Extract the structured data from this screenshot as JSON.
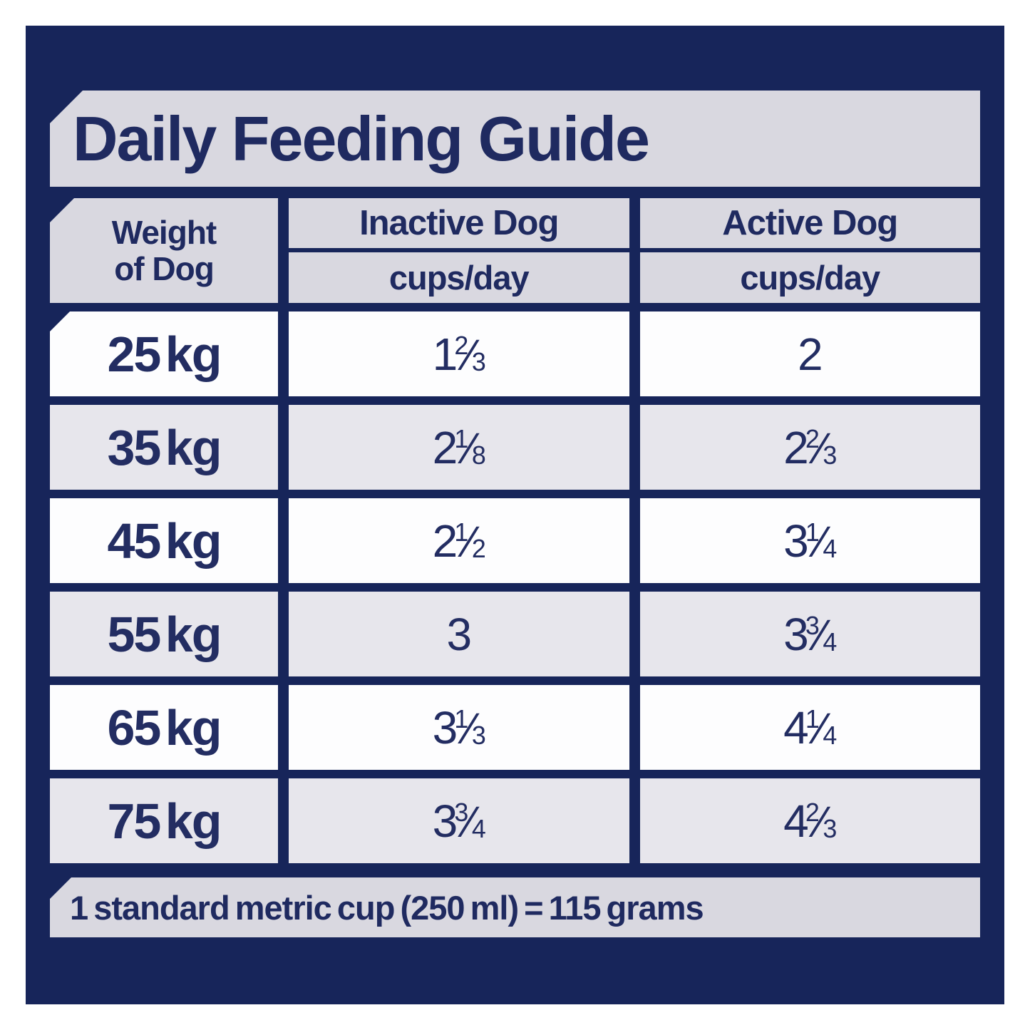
{
  "title": "Daily Feeding Guide",
  "colors": {
    "panel_navy": "#17255a",
    "text_navy": "#232d62",
    "band_gray": "#d9d8e0",
    "row_gray": "#e7e6ec",
    "row_white": "#fdfdfe"
  },
  "header": {
    "col1_line1": "Weight",
    "col1_line2": "of Dog",
    "col2_label": "Inactive Dog",
    "col2_unit": "cups/day",
    "col3_label": "Active Dog",
    "col3_unit": "cups/day"
  },
  "table": {
    "rows": [
      {
        "weight": "25 kg",
        "inactive": "1 2/3",
        "active": "2"
      },
      {
        "weight": "35 kg",
        "inactive": "2 1/8",
        "active": "2 2/3"
      },
      {
        "weight": "45 kg",
        "inactive": "2 1/2",
        "active": "3 1/4"
      },
      {
        "weight": "55 kg",
        "inactive": "3",
        "active": "3 3/4"
      },
      {
        "weight": "65 kg",
        "inactive": "3 1/3",
        "active": "4 1/4"
      },
      {
        "weight": "75 kg",
        "inactive": "3 3/4",
        "active": "4 2/3"
      }
    ]
  },
  "footer": {
    "note": "1 standard metric cup (250 ml) = 115 grams"
  },
  "chart_data": {
    "type": "table",
    "title": "Daily Feeding Guide",
    "columns": [
      "Weight of Dog",
      "Inactive Dog (cups/day)",
      "Active Dog (cups/day)"
    ],
    "rows": [
      [
        "25 kg",
        "1 2/3",
        "2"
      ],
      [
        "35 kg",
        "2 1/8",
        "2 2/3"
      ],
      [
        "45 kg",
        "2 1/2",
        "3 1/4"
      ],
      [
        "55 kg",
        "3",
        "3 3/4"
      ],
      [
        "65 kg",
        "3 1/3",
        "4 1/4"
      ],
      [
        "75 kg",
        "3 3/4",
        "4 2/3"
      ]
    ],
    "note": "1 standard metric cup (250 ml) = 115 grams",
    "units": "cups/day",
    "legend_position": "none",
    "grid": false
  }
}
